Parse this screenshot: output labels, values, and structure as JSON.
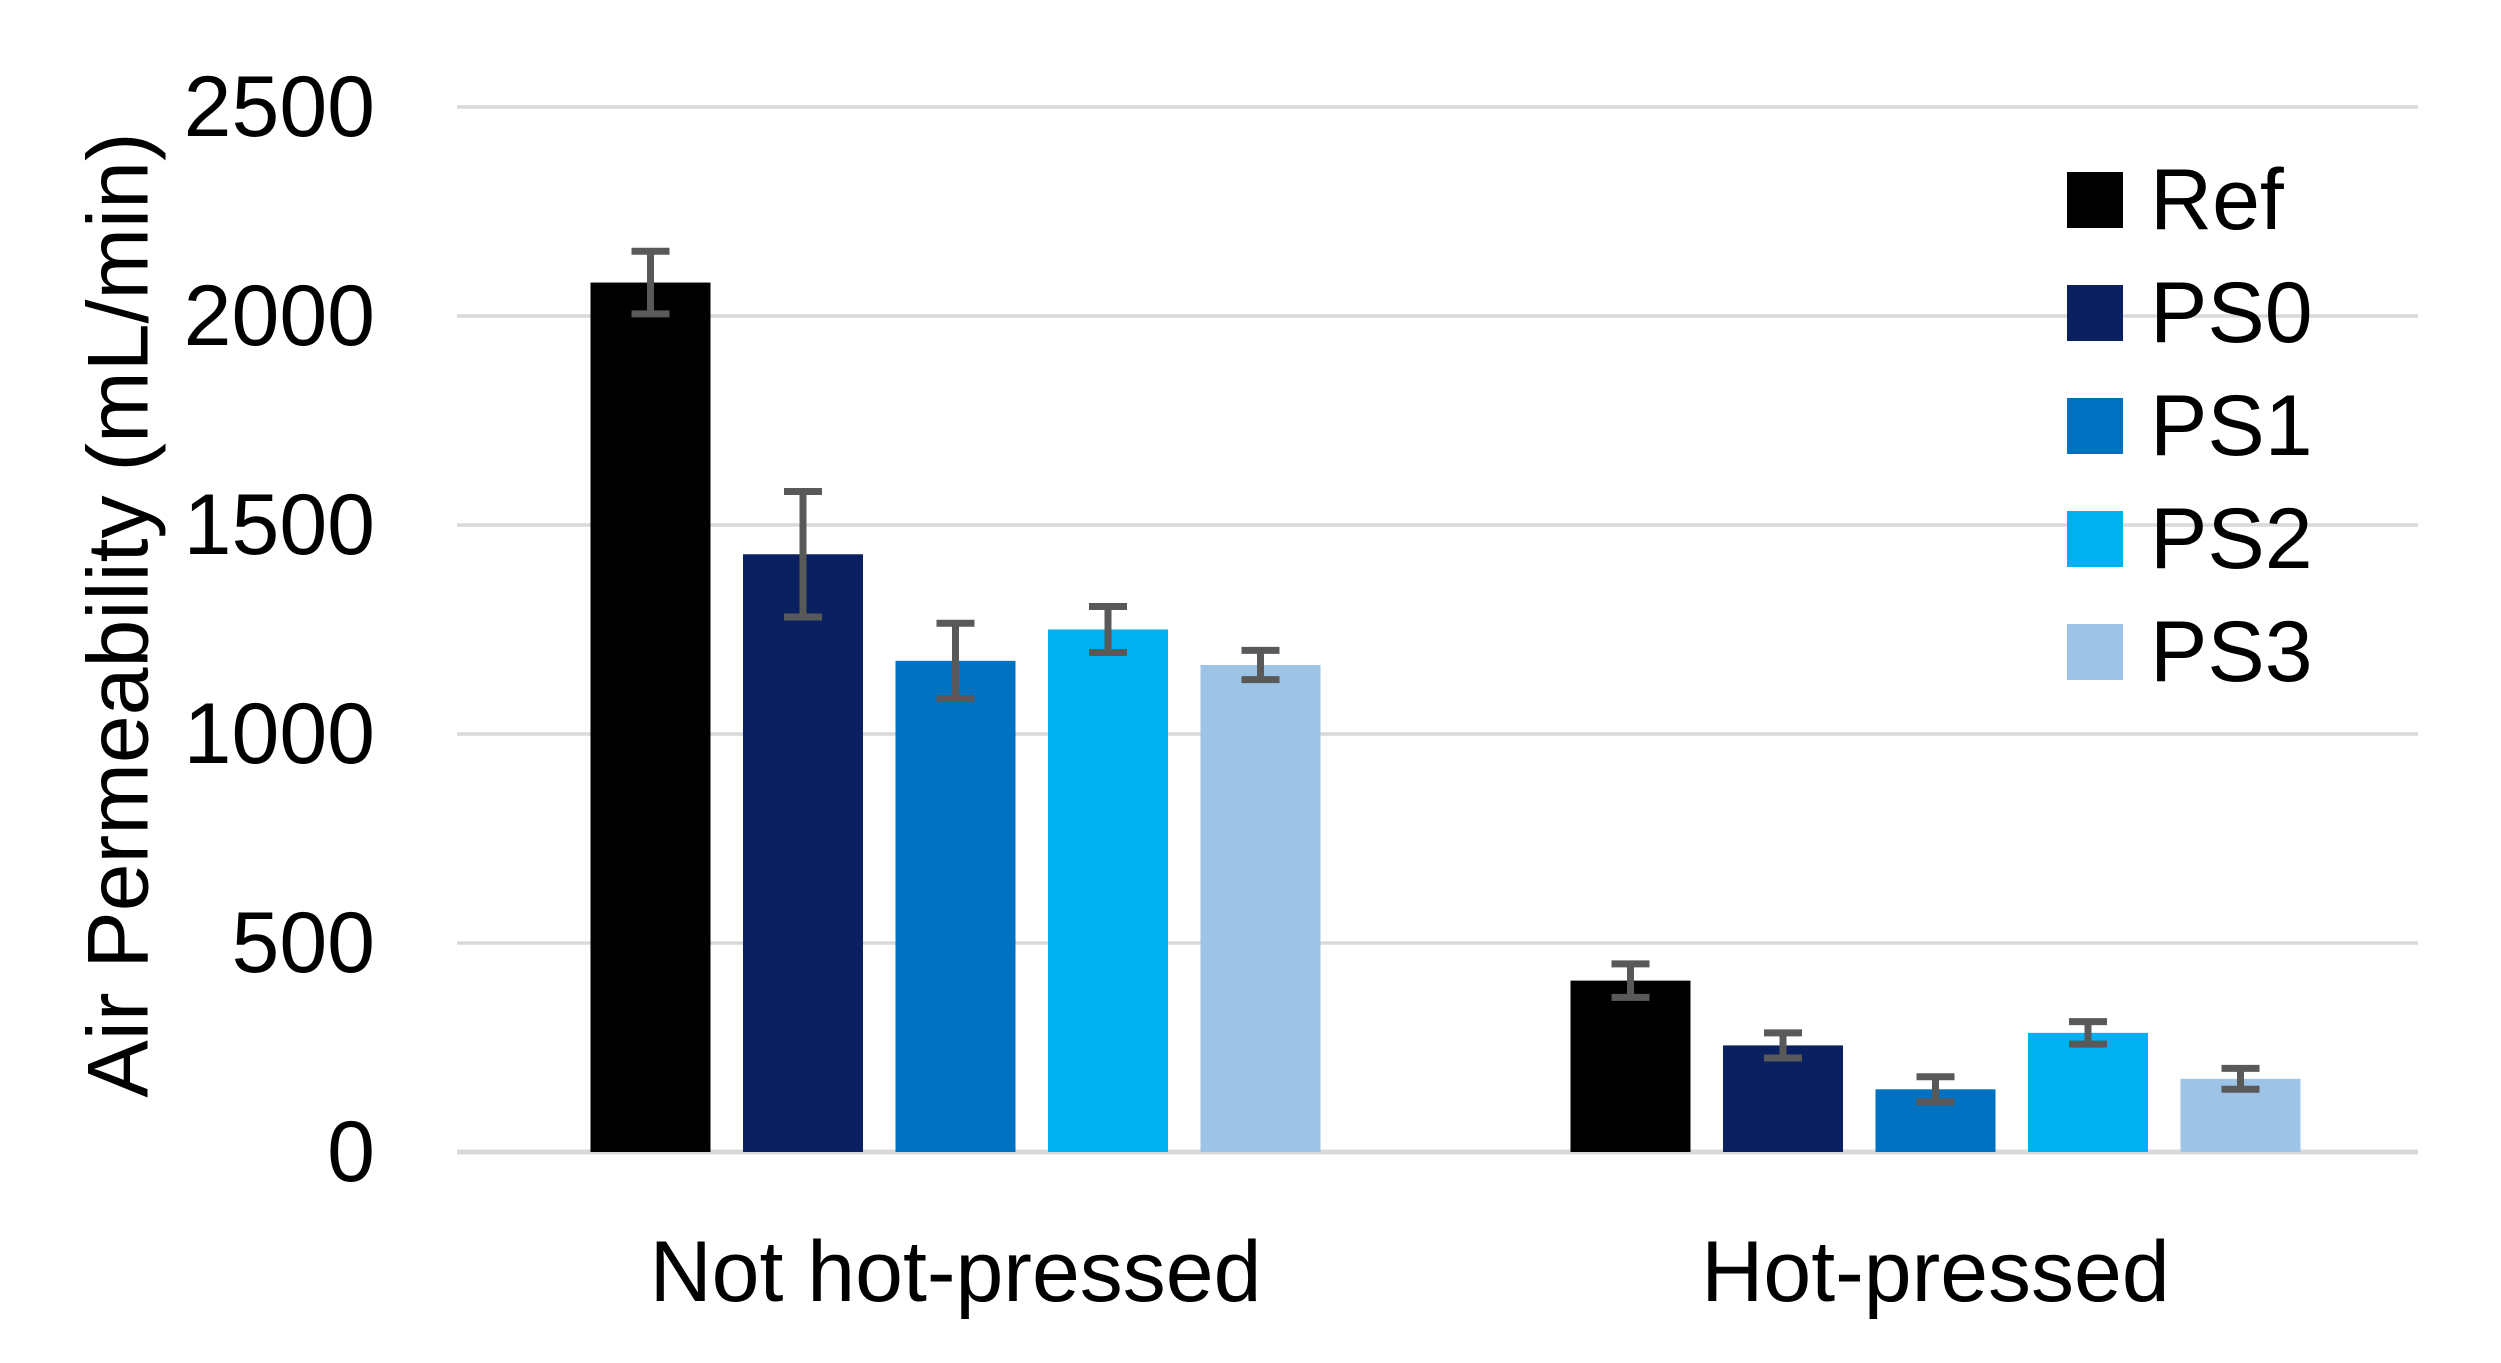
{
  "chart_data": {
    "type": "bar",
    "title": "",
    "xlabel": "",
    "ylabel": "Air Permeability (mL/min)",
    "categories": [
      "Not hot-pressed",
      "Hot-pressed"
    ],
    "series": [
      {
        "name": "Ref",
        "color": "#000000",
        "values": [
          2080,
          410
        ],
        "errors": [
          75,
          40
        ]
      },
      {
        "name": "PS0",
        "color": "#0A2060",
        "values": [
          1430,
          255
        ],
        "errors": [
          150,
          30
        ]
      },
      {
        "name": "PS1",
        "color": "#0070C0",
        "values": [
          1175,
          150
        ],
        "errors": [
          90,
          30
        ]
      },
      {
        "name": "PS2",
        "color": "#00B0F0",
        "values": [
          1250,
          285
        ],
        "errors": [
          55,
          27
        ]
      },
      {
        "name": "PS3",
        "color": "#9DC3E6",
        "values": [
          1165,
          175
        ],
        "errors": [
          35,
          25
        ]
      }
    ],
    "ylim": [
      0,
      2500
    ],
    "yticks": [
      0,
      500,
      1000,
      1500,
      2000,
      2500
    ],
    "grid": "horizontal",
    "legend_position": "upper-right",
    "error_bars": true,
    "gridline_color": "#D9D9D9",
    "error_bar_color": "#595959",
    "text_color": "#000000",
    "background": "#FFFFFF"
  }
}
